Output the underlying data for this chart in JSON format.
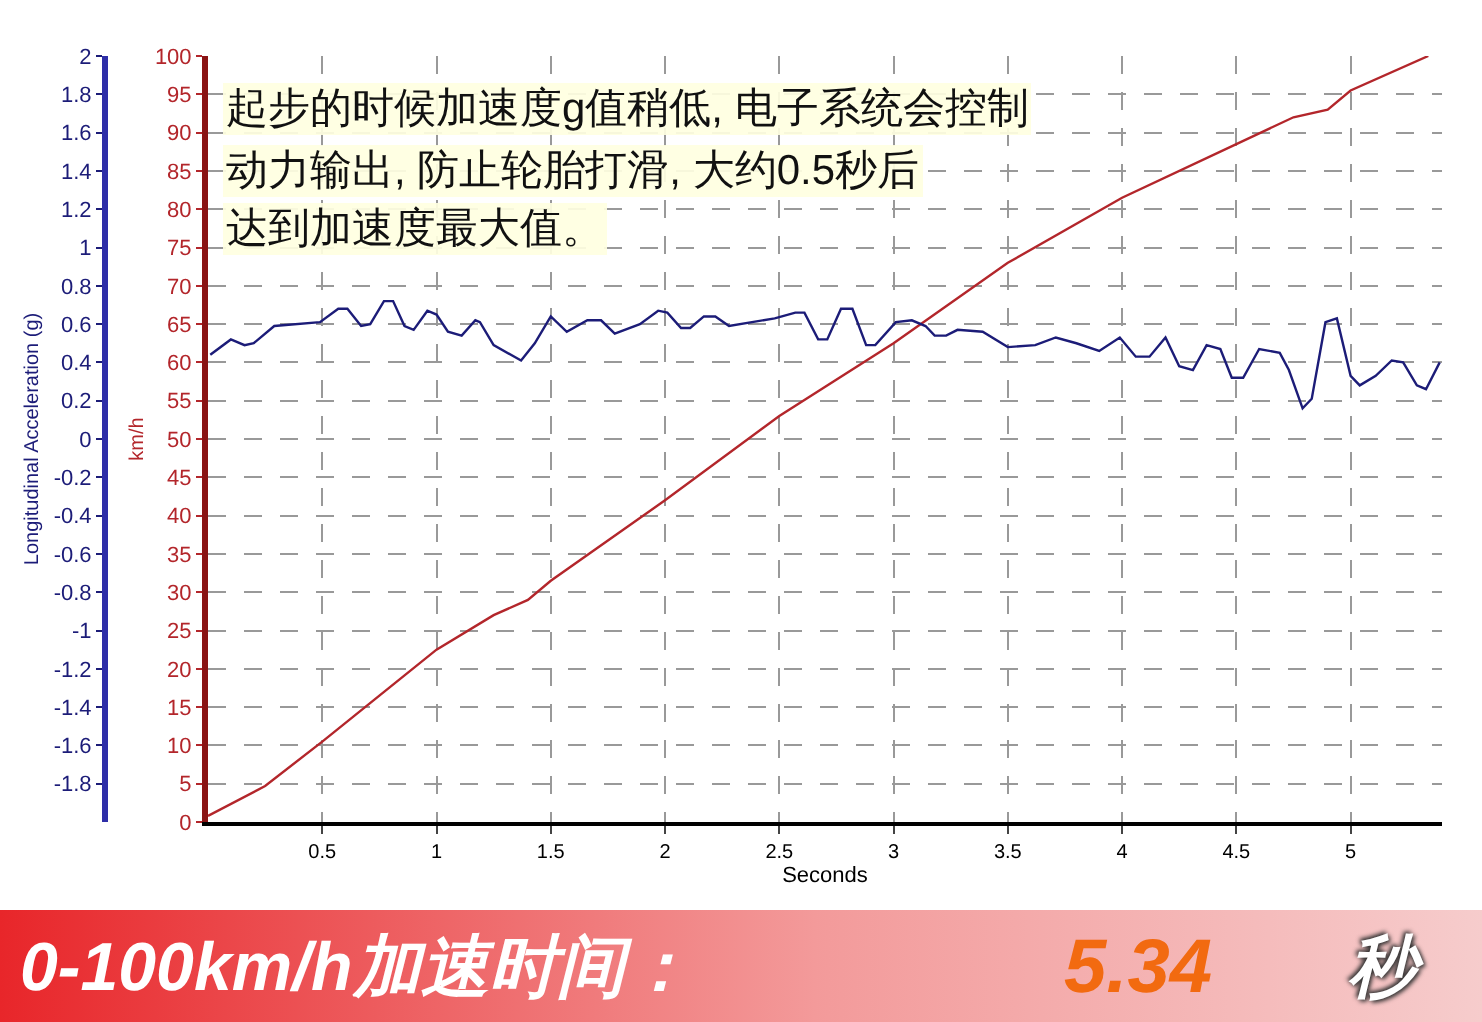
{
  "chart_data": {
    "type": "line",
    "xlabel": "Seconds",
    "ylabel": "km/h",
    "y2label": "Longitudinal Acceleration (g)",
    "annotations": [
      "起步的时候加速度g值稍低, 电子系统会控制",
      "动力输出, 防止轮胎打滑, 大约0.5秒后",
      "达到加速度最大值。",
      "0-100km/h加速时间：",
      "5.34",
      "秒"
    ],
    "xlim": [
      0,
      5.4
    ],
    "xticks": [
      0.5,
      1,
      1.5,
      2,
      2.5,
      3,
      3.5,
      4,
      4.5,
      5
    ],
    "ylim": [
      0,
      100
    ],
    "yticks": [
      0,
      5,
      10,
      15,
      20,
      25,
      30,
      35,
      40,
      45,
      50,
      55,
      60,
      65,
      70,
      75,
      80,
      85,
      90,
      95,
      100
    ],
    "y2lim": [
      -2,
      2
    ],
    "y2ticks": [
      -1.8,
      -1.6,
      -1.4,
      -1.2,
      -1,
      -0.8,
      -0.6,
      -0.4,
      -0.2,
      0,
      0.2,
      0.4,
      0.6,
      0.8,
      1,
      1.2,
      1.4,
      1.6,
      1.8,
      2
    ],
    "grid": true,
    "marker": "none",
    "line_style": "solid",
    "series": [
      {
        "color": "#b3262b",
        "x": [
          0,
          0.25,
          0.5,
          0.75,
          1,
          1.25,
          1.4,
          1.5,
          2,
          2.5,
          3,
          3.5,
          4,
          4.5,
          4.75,
          4.9,
          5,
          5.34
        ],
        "values": [
          0.8,
          4.7,
          10.5,
          16.5,
          22.5,
          27,
          29,
          31.5,
          42,
          53,
          62.5,
          73,
          81.5,
          88.5,
          92,
          93,
          95.5,
          100
        ]
      },
      {
        "color": "#1c1c78",
        "axis": "y2",
        "x": [
          0.01,
          0.1,
          0.16,
          0.2,
          0.29,
          0.49,
          0.57,
          0.61,
          0.67,
          0.71,
          0.77,
          0.81,
          0.86,
          0.9,
          0.96,
          1,
          1.05,
          1.11,
          1.17,
          1.19,
          1.25,
          1.37,
          1.43,
          1.5,
          1.57,
          1.66,
          1.72,
          1.78,
          1.89,
          1.97,
          2.01,
          2.07,
          2.11,
          2.17,
          2.22,
          2.28,
          2.48,
          2.57,
          2.61,
          2.67,
          2.71,
          2.77,
          2.82,
          2.88,
          2.92,
          3.01,
          3.08,
          3.14,
          3.18,
          3.23,
          3.28,
          3.39,
          3.5,
          3.62,
          3.71,
          3.8,
          3.9,
          3.99,
          4.06,
          4.12,
          4.19,
          4.25,
          4.31,
          4.37,
          4.43,
          4.48,
          4.53,
          4.6,
          4.69,
          4.73,
          4.79,
          4.83,
          4.89,
          4.94,
          5,
          5.04,
          5.11,
          5.18,
          5.23,
          5.29,
          5.33,
          5.39
        ],
        "values": [
          0.44,
          0.52,
          0.49,
          0.5,
          0.59,
          0.61,
          0.68,
          0.68,
          0.59,
          0.6,
          0.72,
          0.72,
          0.59,
          0.57,
          0.67,
          0.65,
          0.56,
          0.54,
          0.62,
          0.61,
          0.49,
          0.41,
          0.5,
          0.64,
          0.56,
          0.62,
          0.62,
          0.55,
          0.6,
          0.67,
          0.66,
          0.58,
          0.58,
          0.64,
          0.64,
          0.59,
          0.63,
          0.66,
          0.66,
          0.52,
          0.52,
          0.68,
          0.68,
          0.49,
          0.49,
          0.61,
          0.62,
          0.59,
          0.54,
          0.54,
          0.57,
          0.56,
          0.48,
          0.49,
          0.53,
          0.5,
          0.46,
          0.53,
          0.43,
          0.43,
          0.53,
          0.38,
          0.36,
          0.49,
          0.47,
          0.32,
          0.32,
          0.47,
          0.45,
          0.36,
          0.16,
          0.21,
          0.61,
          0.63,
          0.33,
          0.28,
          0.33,
          0.41,
          0.4,
          0.28,
          0.26,
          0.4
        ]
      }
    ]
  }
}
